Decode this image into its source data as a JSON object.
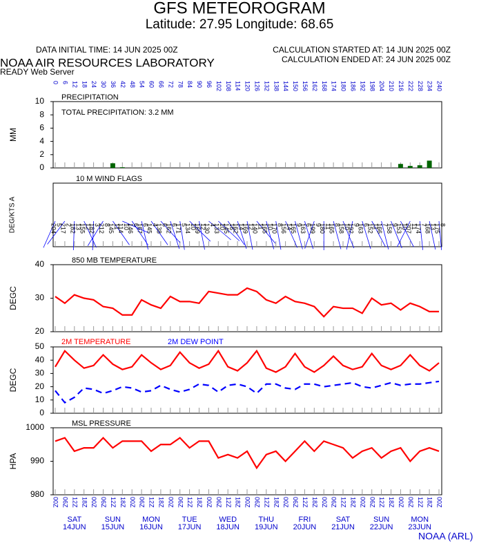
{
  "header": {
    "title": "GFS METEOROGRAM",
    "subtitle": "Latitude: 27.95 Longitude:  68.65",
    "initial_time": "DATA INITIAL TIME: 14 JUN 2025 00Z",
    "calc_started": "CALCULATION STARTED AT: 14 JUN 2025 00Z",
    "calc_ended": "CALCULATION ENDED AT: 24 JUN 2025 00Z",
    "lab": "NOAA AIR RESOURCES LABORATORY",
    "server": "READY Web Server",
    "credit": "NOAA (ARL)"
  },
  "time_axis": {
    "x": [
      0,
      6,
      12,
      18,
      24,
      30,
      36,
      42,
      48,
      54,
      60,
      66,
      72,
      78,
      84,
      90,
      96,
      102,
      108,
      114,
      120,
      126,
      132,
      138,
      144,
      150,
      156,
      162,
      168,
      174,
      180,
      186,
      192,
      198,
      204,
      210,
      216,
      222,
      228,
      234,
      240
    ],
    "xlim": [
      0,
      240
    ],
    "hour_labels": [
      "00Z",
      "06Z",
      "12Z",
      "18Z",
      "00Z",
      "06Z",
      "12Z",
      "18Z",
      "00Z",
      "06Z",
      "12Z",
      "18Z",
      "00Z",
      "06Z",
      "12Z",
      "18Z",
      "00Z",
      "06Z",
      "12Z",
      "18Z",
      "00Z",
      "06Z",
      "12Z",
      "18Z",
      "00Z",
      "06Z",
      "12Z",
      "18Z",
      "00Z",
      "06Z",
      "12Z",
      "18Z",
      "00Z",
      "06Z",
      "12Z",
      "18Z",
      "00Z",
      "06Z",
      "12Z",
      "18Z",
      "00Z"
    ],
    "days": [
      {
        "day": "SAT",
        "date": "14JUN"
      },
      {
        "day": "SUN",
        "date": "15JUN"
      },
      {
        "day": "MON",
        "date": "16JUN"
      },
      {
        "day": "TUE",
        "date": "17JUN"
      },
      {
        "day": "WED",
        "date": "18JUN"
      },
      {
        "day": "THU",
        "date": "19JUN"
      },
      {
        "day": "FRI",
        "date": "20JUN"
      },
      {
        "day": "SAT",
        "date": "21JUN"
      },
      {
        "day": "SUN",
        "date": "22JUN"
      },
      {
        "day": "MON",
        "date": "23JUN"
      }
    ]
  },
  "chart_data": [
    {
      "type": "bar",
      "title": "PRECIPITATION",
      "y_label": "MM",
      "annotation": "TOTAL PRECIPITATION:   3.2 MM",
      "color": "#006400",
      "values": [
        0,
        0,
        0,
        0,
        0,
        0,
        0.7,
        0.1,
        0,
        0,
        0,
        0,
        0,
        0,
        0,
        0,
        0,
        0,
        0,
        0,
        0,
        0,
        0,
        0,
        0,
        0,
        0,
        0,
        0,
        0,
        0,
        0,
        0,
        0,
        0,
        0,
        0.6,
        0.3,
        0.4,
        1.1,
        0
      ],
      "ylim": [
        0,
        10
      ],
      "yticks": [
        0,
        2,
        4,
        6,
        8,
        10
      ]
    },
    {
      "type": "wind",
      "title": "10 M  WIND FLAGS",
      "y_label": "DEG/KTS  A",
      "color": "#0000ff",
      "directions": [
        204,
        217,
        182,
        155,
        182,
        212,
        145,
        114,
        146,
        167,
        145,
        138,
        162,
        171,
        134,
        169,
        130,
        133,
        145,
        162,
        169,
        140,
        165,
        170,
        156,
        165,
        163,
        199,
        180,
        165,
        158,
        192,
        163,
        152,
        166,
        158,
        153,
        207,
        174,
        168,
        175
      ],
      "speeds": [
        5,
        2,
        13,
        12,
        3,
        8,
        11,
        10,
        6,
        6,
        4,
        6,
        6,
        5,
        10,
        12,
        4,
        10,
        16,
        14,
        12,
        11,
        10,
        8,
        14,
        9,
        6,
        9,
        11,
        8,
        10,
        9,
        6,
        11,
        7,
        9,
        10,
        11,
        7,
        13,
        8
      ]
    },
    {
      "type": "line",
      "title": "850 MB  TEMPERATURE",
      "y_label": "DEGC",
      "series": [
        {
          "color": "#ff0000",
          "values": [
            30.5,
            28.5,
            31,
            30,
            29.5,
            27.5,
            27,
            25,
            25,
            29.5,
            28,
            27,
            30.5,
            29,
            29,
            28.5,
            32,
            31.5,
            31,
            31,
            33,
            32,
            29.5,
            28.5,
            30.5,
            29,
            28.5,
            27.5,
            24.5,
            27.5,
            27,
            27,
            25.5,
            30,
            28,
            28.5,
            26.5,
            28.5,
            27.5,
            26,
            26
          ]
        }
      ],
      "ylim": [
        20,
        40
      ],
      "yticks": [
        20,
        30,
        40
      ]
    },
    {
      "type": "line",
      "y_label": "DEGC",
      "series": [
        {
          "name": "2M TEMPERATURE",
          "color": "#ff0000",
          "dash": false,
          "values": [
            35,
            47,
            40,
            34,
            36,
            44,
            37,
            33,
            35,
            44,
            38,
            33,
            36,
            46,
            38,
            34,
            37,
            47,
            35,
            32,
            38,
            47,
            34,
            31,
            35,
            45,
            35,
            31,
            36,
            43,
            36,
            33,
            35,
            45,
            36,
            33,
            36,
            44,
            36,
            32,
            38
          ]
        },
        {
          "name": "2M  DEW POINT",
          "color": "#0000ff",
          "dash": true,
          "values": [
            17,
            8,
            12,
            19,
            18,
            15,
            17,
            20,
            19,
            16,
            17,
            21,
            18,
            16,
            18,
            22,
            21,
            16,
            21,
            22,
            20,
            15,
            22,
            22,
            19,
            18,
            22,
            22,
            20,
            21,
            22,
            23,
            20,
            19,
            21,
            23,
            21,
            22,
            22,
            23,
            24
          ]
        }
      ],
      "ylim": [
        0,
        50
      ],
      "yticks": [
        0,
        10,
        20,
        30,
        40,
        50
      ]
    },
    {
      "type": "line",
      "title": "MSL PRESSURE",
      "y_label": "HPA",
      "series": [
        {
          "color": "#ff0000",
          "values": [
            996,
            997,
            993,
            994,
            994,
            997,
            994,
            996,
            996,
            996,
            993,
            995,
            995,
            997,
            994,
            996,
            996,
            991,
            992,
            991,
            993,
            988,
            992,
            993,
            990,
            993,
            996,
            993,
            996,
            995,
            994,
            991,
            993,
            994,
            991,
            993,
            994,
            990,
            993,
            994,
            993
          ]
        }
      ],
      "ylim": [
        980,
        1000
      ],
      "yticks": [
        980,
        990,
        1000
      ]
    }
  ]
}
